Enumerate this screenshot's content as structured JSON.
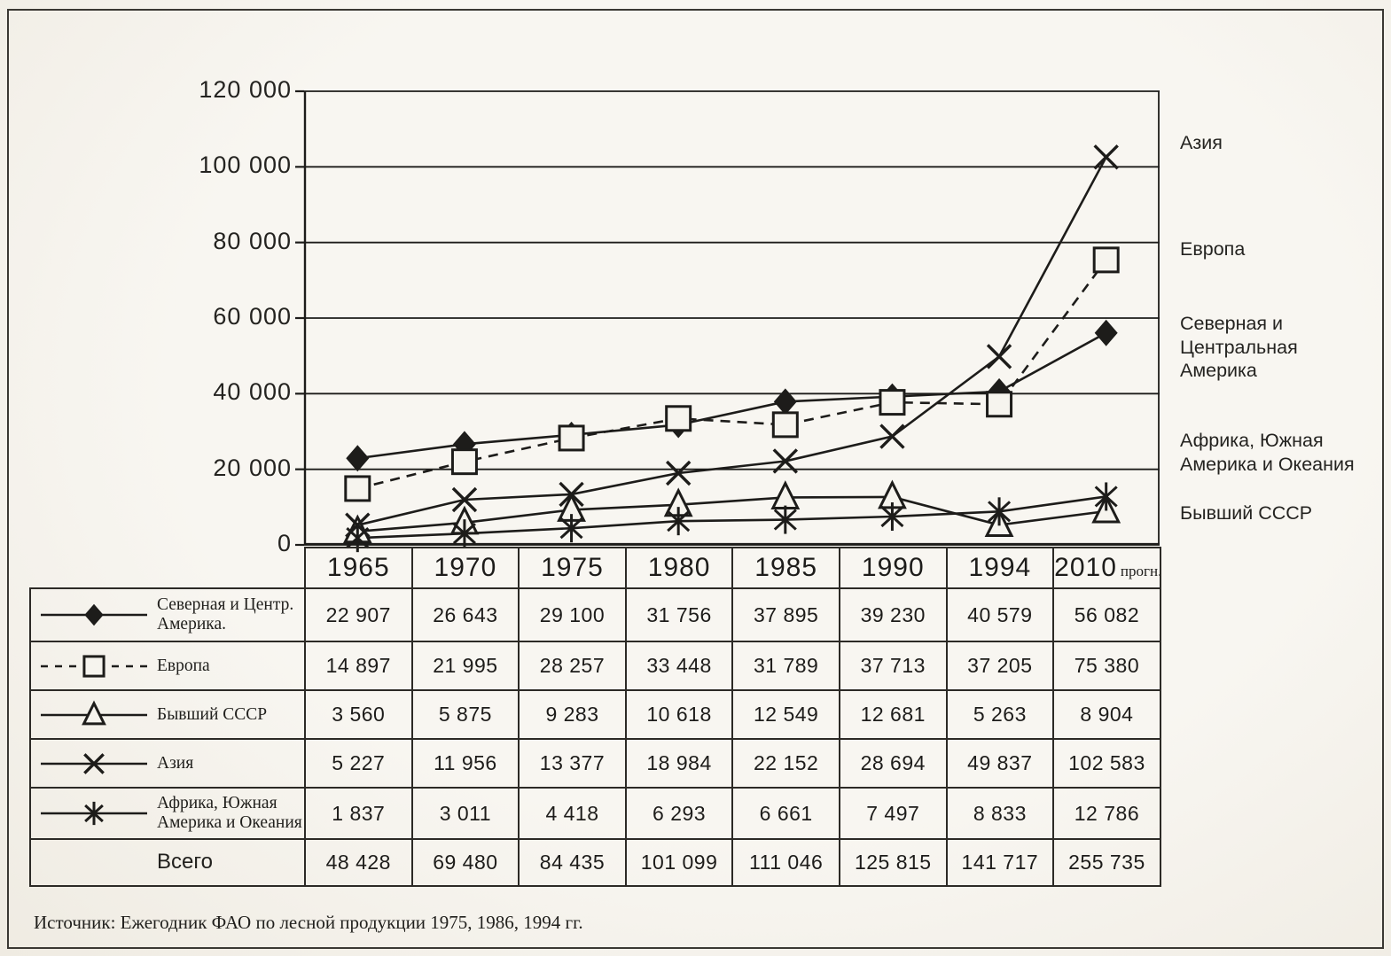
{
  "page": {
    "source_note": "Источник: Ежегодник ФАО по лесной продукции 1975, 1986, 1994 гг."
  },
  "colors": {
    "ink": "#1d1c1a",
    "paper": "#f6f4ee"
  },
  "chart_data": {
    "type": "line",
    "title": "",
    "xlabel": "",
    "ylabel": "",
    "x_categories": [
      "1965",
      "1970",
      "1975",
      "1980",
      "1985",
      "1990",
      "1994",
      "2010"
    ],
    "forecast_suffix": "прогн.",
    "forecast_column_index": 7,
    "ylim": [
      0,
      120000
    ],
    "y_ticks": [
      {
        "value": 120000,
        "label": "120 000"
      },
      {
        "value": 100000,
        "label": "100 000"
      },
      {
        "value": 80000,
        "label": "80 000"
      },
      {
        "value": 60000,
        "label": "60 000"
      },
      {
        "value": 40000,
        "label": "40 000"
      },
      {
        "value": 20000,
        "label": "20 000"
      },
      {
        "value": 0,
        "label": "0"
      }
    ],
    "grid": "horizontal gridlines every 20 000",
    "legend_position": "markers in left table column, series names right of plot",
    "series": [
      {
        "id": "north-central-america",
        "legend_label": "Северная и Центр.\nАмерика.",
        "right_label": "Северная и Центральная\nАмерика",
        "marker": "diamond-filled",
        "line": "solid",
        "values": [
          22907,
          26643,
          29100,
          31756,
          37895,
          39230,
          40579,
          56082
        ],
        "display_values": [
          "22 907",
          "26 643",
          "29 100",
          "31 756",
          "37 895",
          "39 230",
          "40 579",
          "56 082"
        ]
      },
      {
        "id": "europe",
        "legend_label": "Европа",
        "right_label": "Европа",
        "marker": "square-open",
        "line": "dashed",
        "values": [
          14897,
          21995,
          28257,
          33448,
          31789,
          37713,
          37205,
          75380
        ],
        "display_values": [
          "14 897",
          "21 995",
          "28 257",
          "33 448",
          "31 789",
          "37 713",
          "37 205",
          "75 380"
        ]
      },
      {
        "id": "former-ussr",
        "legend_label": "Бывший СССР",
        "right_label": "Бывший СССР",
        "marker": "triangle-open",
        "line": "solid",
        "values": [
          3560,
          5875,
          9283,
          10618,
          12549,
          12681,
          5263,
          8904
        ],
        "display_values": [
          "3 560",
          "5 875",
          "9 283",
          "10 618",
          "12 549",
          "12 681",
          "5 263",
          "8 904"
        ]
      },
      {
        "id": "asia",
        "legend_label": "Азия",
        "right_label": "Азия",
        "marker": "x",
        "line": "solid",
        "values": [
          5227,
          11956,
          13377,
          18984,
          22152,
          28694,
          49837,
          102583
        ],
        "display_values": [
          "5 227",
          "11 956",
          "13 377",
          "18 984",
          "22 152",
          "28 694",
          "49 837",
          "102 583"
        ]
      },
      {
        "id": "africa-south-america-oceania",
        "legend_label": "Африка, Южная\nАмерика и Океания",
        "right_label": "Африка, Южная\nАмерика и Океания",
        "marker": "asterisk",
        "line": "solid",
        "values": [
          1837,
          3011,
          4418,
          6293,
          6661,
          7497,
          8833,
          12786
        ],
        "display_values": [
          "1 837",
          "3 011",
          "4 418",
          "6 293",
          "6 661",
          "7 497",
          "8 833",
          "12 786"
        ]
      }
    ],
    "total_row": {
      "label": "Всего",
      "values": [
        48428,
        69480,
        84435,
        101099,
        111046,
        125815,
        141717,
        255735
      ],
      "display_values": [
        "48 428",
        "69 480",
        "84 435",
        "101 099",
        "111 046",
        "125 815",
        "141 717",
        "255 735"
      ]
    },
    "right_label_order": [
      "asia",
      "europe",
      "north-central-america",
      "africa-south-america-oceania",
      "former-ussr"
    ]
  }
}
